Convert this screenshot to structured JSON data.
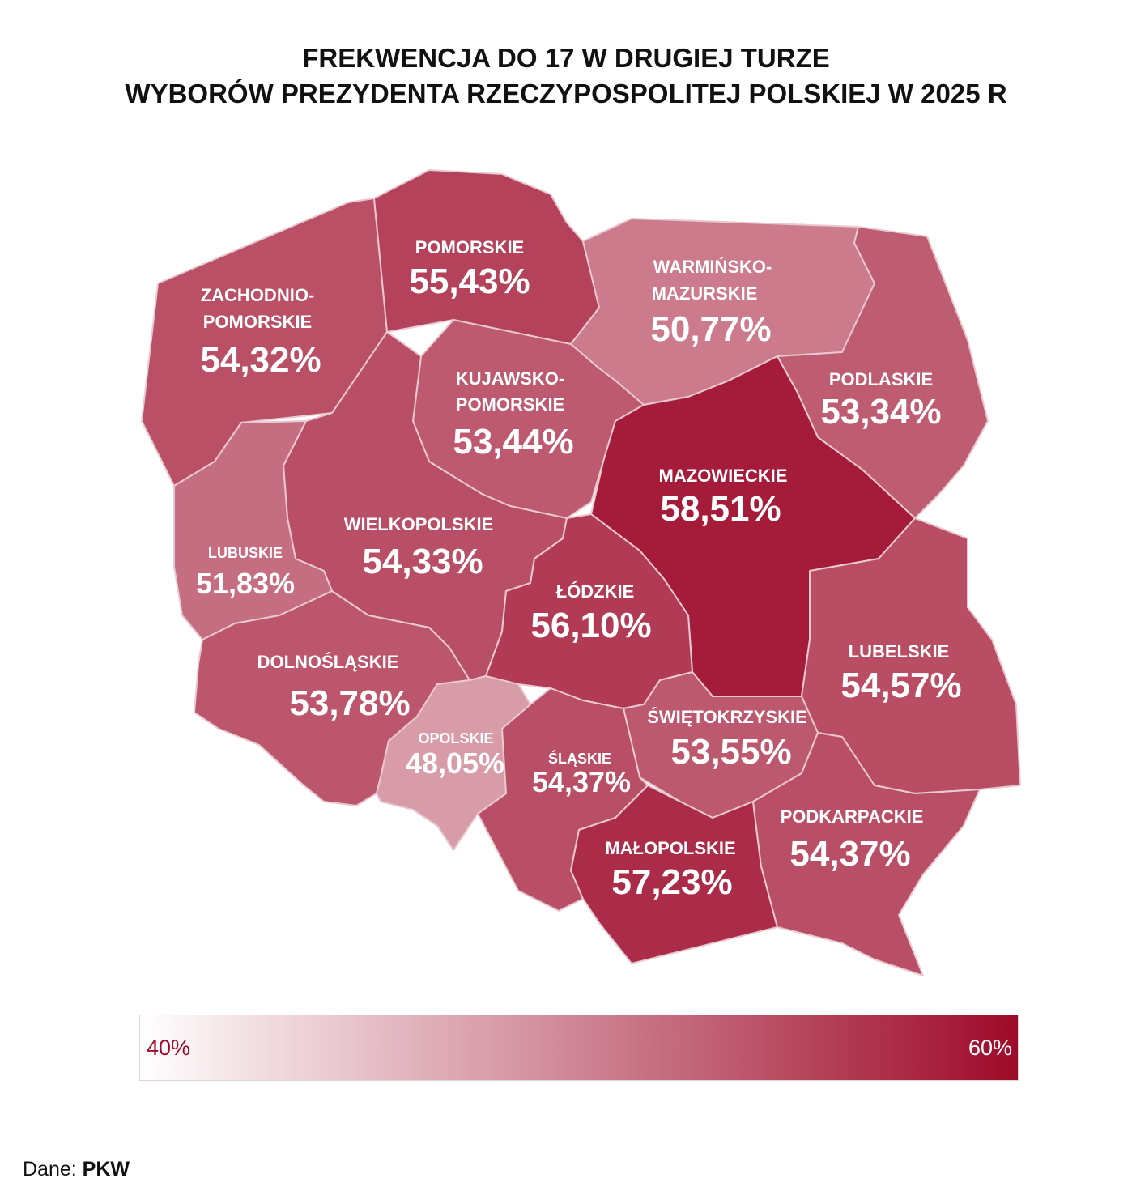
{
  "title": {
    "line1": "FREKWENCJA DO 17 W DRUGIEJ TURZE",
    "line2": "WYBORÓW PREZYDENTA RZECZYPOSPOLITEJ POLSKIEJ W 2025 R"
  },
  "regions": {
    "zachodniopomorskie": {
      "name1": "ZACHODNIO-",
      "name2": "POMORSKIE",
      "value": "54,32%",
      "pct": 54.32
    },
    "pomorskie": {
      "name": "POMORSKIE",
      "value": "55,43%",
      "pct": 55.43
    },
    "warminsko": {
      "name1": "WARMIŃSKO-",
      "name2": "MAZURSKIE",
      "value": "50,77%",
      "pct": 50.77
    },
    "podlaskie": {
      "name": "PODLASKIE",
      "value": "53,34%",
      "pct": 53.34
    },
    "kujawsko": {
      "name1": "KUJAWSKO-",
      "name2": "POMORSKIE",
      "value": "53,44%",
      "pct": 53.44
    },
    "mazowieckie": {
      "name": "MAZOWIECKIE",
      "value": "58,51%",
      "pct": 58.51
    },
    "wielkopolskie": {
      "name": "WIELKOPOLSKIE",
      "value": "54,33%",
      "pct": 54.33
    },
    "lubuskie": {
      "name": "LUBUSKIE",
      "value": "51,83%",
      "pct": 51.83
    },
    "lodzkie": {
      "name": "ŁÓDZKIE",
      "value": "56,10%",
      "pct": 56.1
    },
    "lubelskie": {
      "name": "LUBELSKIE",
      "value": "54,57%",
      "pct": 54.57
    },
    "dolnoslaskie": {
      "name": "DOLNOŚLĄSKIE",
      "value": "53,78%",
      "pct": 53.78
    },
    "swietokrzyskie": {
      "name": "ŚWIĘTOKRZYSKIE",
      "value": "53,55%",
      "pct": 53.55
    },
    "opolskie": {
      "name": "OPOLSKIE",
      "value": "48,05%",
      "pct": 48.05
    },
    "slaskie": {
      "name": "ŚLĄSKIE",
      "value": "54,37%",
      "pct": 54.37
    },
    "malopolskie": {
      "name": "MAŁOPOLSKIE",
      "value": "57,23%",
      "pct": 57.23
    },
    "podkarpackie": {
      "name": "PODKARPACKIE",
      "value": "54,37%",
      "pct": 54.37
    }
  },
  "legend": {
    "min_label": "40%",
    "max_label": "60%",
    "min_color": "#ffffff",
    "max_color": "#9e0a2a",
    "min_label_color": "#9e0a2a"
  },
  "source": {
    "prefix": "Dane:",
    "name": "PKW"
  }
}
